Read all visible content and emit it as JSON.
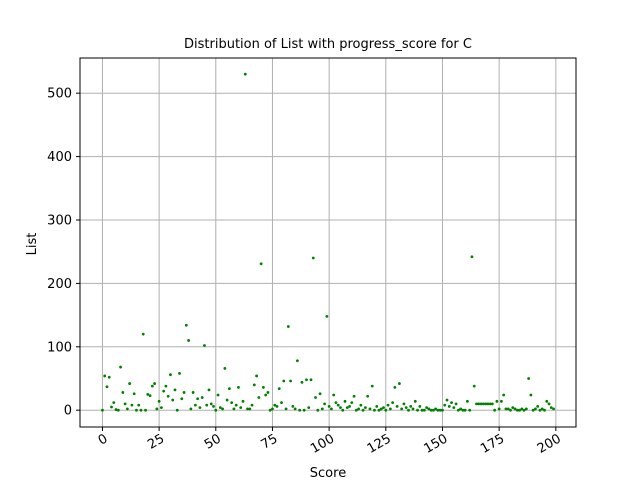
{
  "chart_data": {
    "type": "scatter",
    "title": "Distribution of List with progress_score for C",
    "xlabel": "Score",
    "ylabel": "List",
    "xlim": [
      -9.9,
      208.9
    ],
    "ylim": [
      -26.5,
      555.5
    ],
    "xticks": [
      0,
      25,
      50,
      75,
      100,
      125,
      150,
      175,
      200
    ],
    "yticks": [
      0,
      100,
      200,
      300,
      400,
      500
    ],
    "x_tick_rotation": 30,
    "grid": true,
    "colors": {
      "points": "#008000",
      "grid": "#b0b0b0",
      "axes": "#000000"
    },
    "points": [
      [
        0,
        0
      ],
      [
        1,
        54
      ],
      [
        2,
        37
      ],
      [
        3,
        52
      ],
      [
        4,
        5
      ],
      [
        5,
        12
      ],
      [
        6,
        1
      ],
      [
        7,
        0
      ],
      [
        8,
        68
      ],
      [
        9,
        28
      ],
      [
        10,
        10
      ],
      [
        11,
        2
      ],
      [
        12,
        42
      ],
      [
        13,
        8
      ],
      [
        14,
        26
      ],
      [
        15,
        0
      ],
      [
        16,
        8
      ],
      [
        17,
        0
      ],
      [
        18,
        120
      ],
      [
        19,
        0
      ],
      [
        20,
        25
      ],
      [
        21,
        23
      ],
      [
        22,
        38
      ],
      [
        23,
        42
      ],
      [
        24,
        2
      ],
      [
        25,
        14
      ],
      [
        26,
        4
      ],
      [
        27,
        30
      ],
      [
        28,
        38
      ],
      [
        29,
        22
      ],
      [
        30,
        56
      ],
      [
        31,
        16
      ],
      [
        32,
        32
      ],
      [
        33,
        0
      ],
      [
        34,
        58
      ],
      [
        35,
        18
      ],
      [
        36,
        28
      ],
      [
        37,
        134
      ],
      [
        38,
        110
      ],
      [
        39,
        2
      ],
      [
        40,
        28
      ],
      [
        41,
        8
      ],
      [
        42,
        18
      ],
      [
        43,
        4
      ],
      [
        44,
        20
      ],
      [
        45,
        102
      ],
      [
        46,
        8
      ],
      [
        47,
        32
      ],
      [
        48,
        10
      ],
      [
        49,
        6
      ],
      [
        50,
        0
      ],
      [
        51,
        24
      ],
      [
        52,
        4
      ],
      [
        53,
        2
      ],
      [
        54,
        66
      ],
      [
        55,
        16
      ],
      [
        56,
        34
      ],
      [
        57,
        12
      ],
      [
        58,
        2
      ],
      [
        59,
        8
      ],
      [
        60,
        36
      ],
      [
        61,
        4
      ],
      [
        62,
        14
      ],
      [
        63,
        530
      ],
      [
        64,
        2
      ],
      [
        65,
        2
      ],
      [
        66,
        8
      ],
      [
        67,
        40
      ],
      [
        68,
        54
      ],
      [
        69,
        20
      ],
      [
        70,
        231
      ],
      [
        71,
        36
      ],
      [
        72,
        24
      ],
      [
        73,
        28
      ],
      [
        74,
        0
      ],
      [
        75,
        2
      ],
      [
        76,
        8
      ],
      [
        77,
        6
      ],
      [
        78,
        34
      ],
      [
        79,
        12
      ],
      [
        80,
        46
      ],
      [
        81,
        2
      ],
      [
        82,
        132
      ],
      [
        83,
        46
      ],
      [
        84,
        6
      ],
      [
        85,
        2
      ],
      [
        86,
        78
      ],
      [
        87,
        0
      ],
      [
        88,
        44
      ],
      [
        89,
        0
      ],
      [
        90,
        48
      ],
      [
        91,
        4
      ],
      [
        92,
        48
      ],
      [
        93,
        240
      ],
      [
        94,
        20
      ],
      [
        95,
        0
      ],
      [
        96,
        26
      ],
      [
        97,
        2
      ],
      [
        98,
        10
      ],
      [
        99,
        148
      ],
      [
        100,
        6
      ],
      [
        101,
        2
      ],
      [
        102,
        24
      ],
      [
        103,
        12
      ],
      [
        104,
        8
      ],
      [
        105,
        4
      ],
      [
        106,
        0
      ],
      [
        107,
        14
      ],
      [
        108,
        4
      ],
      [
        109,
        6
      ],
      [
        110,
        12
      ],
      [
        111,
        22
      ],
      [
        112,
        0
      ],
      [
        113,
        2
      ],
      [
        114,
        8
      ],
      [
        115,
        0
      ],
      [
        116,
        4
      ],
      [
        117,
        22
      ],
      [
        118,
        2
      ],
      [
        119,
        38
      ],
      [
        120,
        0
      ],
      [
        121,
        6
      ],
      [
        122,
        0
      ],
      [
        123,
        2
      ],
      [
        124,
        4
      ],
      [
        125,
        0
      ],
      [
        126,
        8
      ],
      [
        127,
        2
      ],
      [
        128,
        12
      ],
      [
        129,
        36
      ],
      [
        130,
        6
      ],
      [
        131,
        42
      ],
      [
        132,
        2
      ],
      [
        133,
        10
      ],
      [
        134,
        4
      ],
      [
        135,
        0
      ],
      [
        136,
        6
      ],
      [
        137,
        2
      ],
      [
        138,
        14
      ],
      [
        139,
        0
      ],
      [
        140,
        6
      ],
      [
        141,
        0
      ],
      [
        142,
        0
      ],
      [
        143,
        4
      ],
      [
        144,
        2
      ],
      [
        145,
        0
      ],
      [
        146,
        0
      ],
      [
        147,
        2
      ],
      [
        148,
        0
      ],
      [
        149,
        0
      ],
      [
        150,
        0
      ],
      [
        151,
        8
      ],
      [
        152,
        16
      ],
      [
        153,
        6
      ],
      [
        154,
        12
      ],
      [
        155,
        4
      ],
      [
        156,
        10
      ],
      [
        157,
        0
      ],
      [
        158,
        2
      ],
      [
        159,
        0
      ],
      [
        160,
        0
      ],
      [
        161,
        14
      ],
      [
        162,
        0
      ],
      [
        163,
        242
      ],
      [
        164,
        38
      ],
      [
        165,
        10
      ],
      [
        166,
        10
      ],
      [
        167,
        10
      ],
      [
        168,
        10
      ],
      [
        169,
        10
      ],
      [
        170,
        10
      ],
      [
        171,
        10
      ],
      [
        172,
        10
      ],
      [
        173,
        0
      ],
      [
        174,
        14
      ],
      [
        175,
        2
      ],
      [
        176,
        14
      ],
      [
        177,
        24
      ],
      [
        178,
        2
      ],
      [
        179,
        2
      ],
      [
        180,
        0
      ],
      [
        181,
        4
      ],
      [
        182,
        2
      ],
      [
        183,
        0
      ],
      [
        184,
        0
      ],
      [
        185,
        2
      ],
      [
        186,
        0
      ],
      [
        187,
        2
      ],
      [
        188,
        50
      ],
      [
        189,
        24
      ],
      [
        190,
        0
      ],
      [
        191,
        2
      ],
      [
        192,
        6
      ],
      [
        193,
        0
      ],
      [
        194,
        2
      ],
      [
        195,
        0
      ],
      [
        196,
        14
      ],
      [
        197,
        10
      ],
      [
        198,
        4
      ],
      [
        199,
        2
      ]
    ]
  }
}
